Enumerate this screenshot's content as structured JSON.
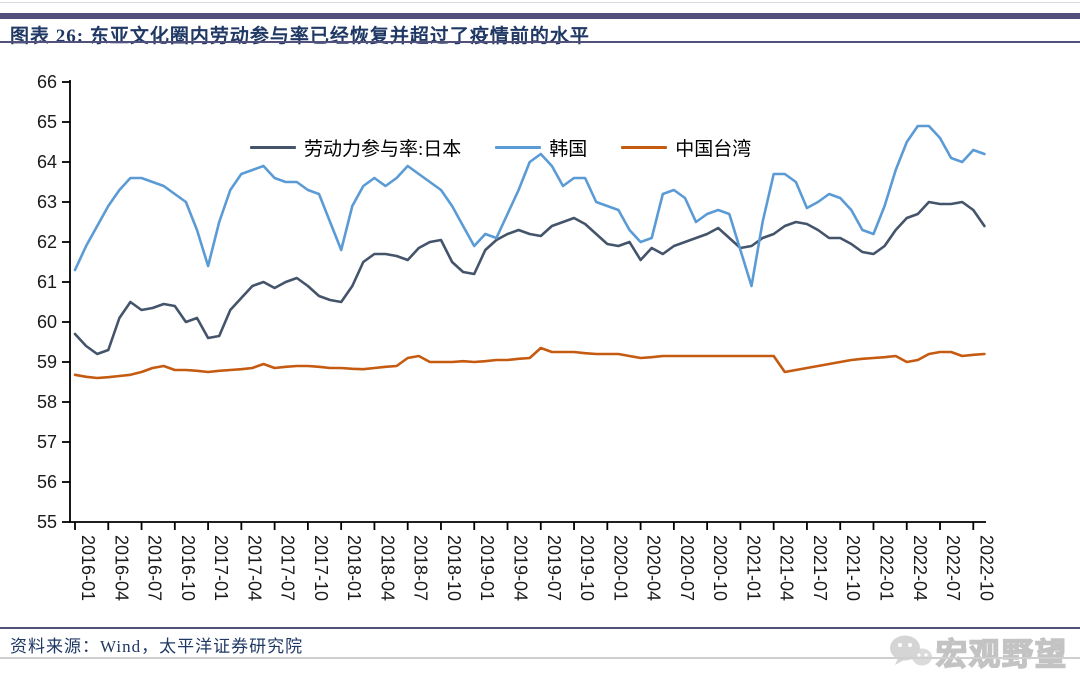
{
  "page": {
    "title": "图表 26:  东亚文化圈内劳动参与率已经恢复并超过了疫情前的水平",
    "source": "资料来源：Wind，太平洋证券研究院"
  },
  "colors": {
    "accent_bar": "#52517c",
    "title_text": "#1f3864",
    "axis": "#000000",
    "japan_line": "#44546A",
    "korea_line": "#5B9BD5",
    "taiwan_line": "#C55A11",
    "watermark": "#b5b5b5"
  },
  "watermark": {
    "icon": "wechat-bubbles-icon",
    "label": "宏观野望"
  },
  "chart_data": {
    "type": "line",
    "title": "东亚文化圈内劳动参与率已经恢复并超过了疫情前的水平",
    "xlabel": "",
    "ylabel": "",
    "x_frequency": "monthly",
    "x_start": "2016-01",
    "x_end": "2022-11",
    "ylim": [
      55,
      66
    ],
    "y_ticks": [
      55,
      56,
      57,
      58,
      59,
      60,
      61,
      62,
      63,
      64,
      65,
      66
    ],
    "grid": false,
    "legend_position": "top-center",
    "x_tick_labels": [
      "2016-01",
      "2016-04",
      "2016-07",
      "2016-10",
      "2017-01",
      "2017-04",
      "2017-07",
      "2017-10",
      "2018-01",
      "2018-04",
      "2018-07",
      "2018-10",
      "2019-01",
      "2019-04",
      "2019-07",
      "2019-10",
      "2020-01",
      "2020-04",
      "2020-07",
      "2020-10",
      "2021-01",
      "2021-04",
      "2021-07",
      "2021-10",
      "2022-01",
      "2022-04",
      "2022-07",
      "2022-10"
    ],
    "series": [
      {
        "name": "劳动力参与率:日本",
        "color": "#44546A",
        "values": [
          59.7,
          59.4,
          59.2,
          59.3,
          60.1,
          60.5,
          60.3,
          60.35,
          60.45,
          60.4,
          60.0,
          60.1,
          59.6,
          59.65,
          60.3,
          60.6,
          60.9,
          61.0,
          60.85,
          61.0,
          61.1,
          60.9,
          60.65,
          60.55,
          60.5,
          60.9,
          61.5,
          61.7,
          61.7,
          61.65,
          61.55,
          61.85,
          62.0,
          62.05,
          61.5,
          61.25,
          61.2,
          61.8,
          62.05,
          62.2,
          62.3,
          62.2,
          62.15,
          62.4,
          62.5,
          62.6,
          62.45,
          62.2,
          61.95,
          61.9,
          62.0,
          61.55,
          61.85,
          61.7,
          61.9,
          62.0,
          62.1,
          62.2,
          62.35,
          62.1,
          61.85,
          61.9,
          62.1,
          62.2,
          62.4,
          62.5,
          62.45,
          62.3,
          62.1,
          62.1,
          61.95,
          61.75,
          61.7,
          61.9,
          62.3,
          62.6,
          62.7,
          63.0,
          62.95,
          62.95,
          63.0,
          62.8,
          62.4
        ]
      },
      {
        "name": "韩国",
        "color": "#5B9BD5",
        "values": [
          61.3,
          61.9,
          62.4,
          62.9,
          63.3,
          63.6,
          63.6,
          63.5,
          63.4,
          63.2,
          63.0,
          62.3,
          61.4,
          62.5,
          63.3,
          63.7,
          63.8,
          63.9,
          63.6,
          63.5,
          63.5,
          63.3,
          63.2,
          62.5,
          61.8,
          62.9,
          63.4,
          63.6,
          63.4,
          63.6,
          63.9,
          63.7,
          63.5,
          63.3,
          62.9,
          62.4,
          61.9,
          62.2,
          62.1,
          62.7,
          63.3,
          64.0,
          64.2,
          63.9,
          63.4,
          63.6,
          63.6,
          63.0,
          62.9,
          62.8,
          62.3,
          62.0,
          62.1,
          63.2,
          63.3,
          63.1,
          62.5,
          62.7,
          62.8,
          62.7,
          61.8,
          60.9,
          62.5,
          63.7,
          63.7,
          63.5,
          62.85,
          63.0,
          63.2,
          63.1,
          62.8,
          62.3,
          62.2,
          62.9,
          63.8,
          64.5,
          64.9,
          64.9,
          64.6,
          64.1,
          64.0,
          64.3,
          64.2
        ]
      },
      {
        "name": "中国台湾",
        "color": "#C55A11",
        "values": [
          58.68,
          58.63,
          58.6,
          58.62,
          58.65,
          58.68,
          58.75,
          58.85,
          58.9,
          58.8,
          58.8,
          58.78,
          58.75,
          58.78,
          58.8,
          58.82,
          58.85,
          58.95,
          58.85,
          58.88,
          58.9,
          58.9,
          58.88,
          58.85,
          58.85,
          58.83,
          58.82,
          58.85,
          58.88,
          58.9,
          59.1,
          59.15,
          59.0,
          59.0,
          59.0,
          59.02,
          59.0,
          59.02,
          59.05,
          59.05,
          59.08,
          59.1,
          59.35,
          59.25,
          59.25,
          59.25,
          59.22,
          59.2,
          59.2,
          59.2,
          59.15,
          59.1,
          59.12,
          59.15,
          59.15,
          59.15,
          59.15,
          59.15,
          59.15,
          59.15,
          59.15,
          59.15,
          59.15,
          59.15,
          58.75,
          58.8,
          58.85,
          58.9,
          58.95,
          59.0,
          59.05,
          59.08,
          59.1,
          59.12,
          59.15,
          59.0,
          59.05,
          59.2,
          59.25,
          59.25,
          59.15,
          59.18,
          59.2
        ]
      }
    ]
  }
}
